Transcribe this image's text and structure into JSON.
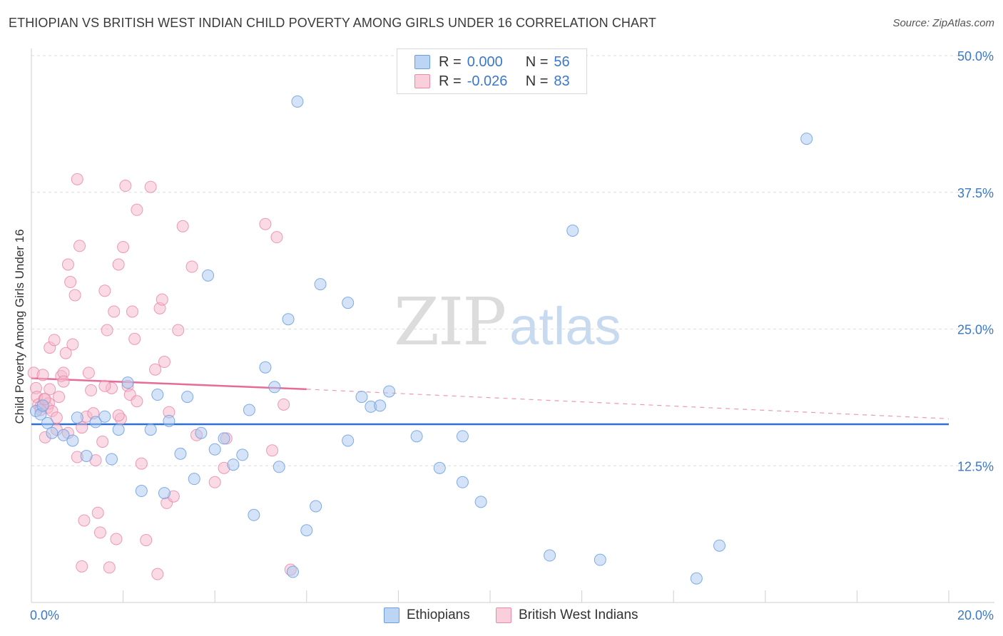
{
  "header": {
    "title": "ETHIOPIAN VS BRITISH WEST INDIAN CHILD POVERTY AMONG GIRLS UNDER 16 CORRELATION CHART",
    "source": "Source: ZipAtlas.com"
  },
  "watermark": {
    "zip": "ZIP",
    "atlas": "atlas"
  },
  "colors": {
    "blue_fill": "#a9c8f0",
    "blue_stroke": "#6c9fe0",
    "blue_line": "#2f6fd0",
    "pink_fill": "#f5b8cb",
    "pink_stroke": "#e98aa9",
    "pink_line": "#e66b98",
    "axis_text": "#3b78c9"
  },
  "legend": {
    "series": [
      {
        "r_label": "R =",
        "r_value": "0.000",
        "n_label": "N =",
        "n_value": "56"
      },
      {
        "r_label": "R =",
        "r_value": "-0.026",
        "n_label": "N =",
        "n_value": "83"
      }
    ],
    "bottom": [
      "Ethiopians",
      "British West Indians"
    ]
  },
  "chart_data": {
    "type": "scatter",
    "title": "ETHIOPIAN VS BRITISH WEST INDIAN CHILD POVERTY AMONG GIRLS UNDER 16 CORRELATION CHART",
    "xlabel": "",
    "ylabel": "Child Poverty Among Girls Under 16",
    "xlim": [
      0,
      20
    ],
    "ylim": [
      0,
      50
    ],
    "x_tick_labels": [
      "0.0%",
      "20.0%"
    ],
    "y_ticks": [
      12.5,
      25.0,
      37.5,
      50.0
    ],
    "y_tick_labels": [
      "12.5%",
      "25.0%",
      "37.5%",
      "50.0%"
    ],
    "grid": true,
    "series": [
      {
        "name": "Ethiopians",
        "r": 0.0,
        "n": 56,
        "trend": {
          "x": [
            0,
            20
          ],
          "y": [
            16.3,
            16.3
          ]
        },
        "points": [
          [
            0.1,
            17.5
          ],
          [
            0.2,
            17.2
          ],
          [
            0.35,
            16.4
          ],
          [
            0.45,
            15.5
          ],
          [
            0.7,
            15.3
          ],
          [
            0.9,
            14.8
          ],
          [
            1.0,
            16.9
          ],
          [
            1.2,
            13.4
          ],
          [
            1.4,
            16.5
          ],
          [
            1.6,
            17.0
          ],
          [
            1.75,
            13.1
          ],
          [
            1.9,
            15.8
          ],
          [
            2.1,
            20.1
          ],
          [
            2.4,
            10.2
          ],
          [
            2.6,
            15.8
          ],
          [
            2.75,
            19.0
          ],
          [
            2.9,
            10.0
          ],
          [
            3.0,
            16.6
          ],
          [
            3.25,
            13.6
          ],
          [
            3.4,
            18.8
          ],
          [
            3.55,
            11.3
          ],
          [
            3.7,
            15.5
          ],
          [
            3.85,
            29.9
          ],
          [
            4.0,
            14.0
          ],
          [
            4.2,
            15.0
          ],
          [
            4.4,
            12.6
          ],
          [
            4.6,
            13.5
          ],
          [
            4.75,
            17.6
          ],
          [
            4.85,
            8.0
          ],
          [
            5.1,
            21.5
          ],
          [
            5.3,
            19.7
          ],
          [
            5.4,
            12.4
          ],
          [
            5.6,
            25.9
          ],
          [
            5.7,
            2.8
          ],
          [
            5.8,
            45.8
          ],
          [
            6.0,
            6.6
          ],
          [
            6.2,
            8.8
          ],
          [
            6.3,
            29.1
          ],
          [
            6.9,
            14.8
          ],
          [
            6.9,
            27.4
          ],
          [
            7.2,
            18.8
          ],
          [
            7.4,
            17.9
          ],
          [
            7.6,
            18.0
          ],
          [
            7.8,
            19.3
          ],
          [
            8.4,
            15.2
          ],
          [
            8.9,
            12.3
          ],
          [
            9.4,
            15.2
          ],
          [
            9.4,
            11.0
          ],
          [
            9.8,
            9.2
          ],
          [
            11.3,
            4.3
          ],
          [
            11.8,
            34.0
          ],
          [
            12.4,
            3.9
          ],
          [
            14.5,
            2.2
          ],
          [
            15.0,
            5.2
          ],
          [
            16.9,
            42.4
          ],
          [
            0.25,
            18.0
          ]
        ]
      },
      {
        "name": "British West Indians",
        "r": -0.026,
        "n": 83,
        "trend": {
          "x": [
            0,
            6
          ],
          "y": [
            20.5,
            19.5
          ],
          "dashed_to": {
            "x": 20,
            "y": 16.8
          }
        },
        "points": [
          [
            0.05,
            21.0
          ],
          [
            0.1,
            19.6
          ],
          [
            0.12,
            18.8
          ],
          [
            0.15,
            18.1
          ],
          [
            0.2,
            17.9
          ],
          [
            0.25,
            20.8
          ],
          [
            0.28,
            18.6
          ],
          [
            0.3,
            15.1
          ],
          [
            0.35,
            17.8
          ],
          [
            0.38,
            18.2
          ],
          [
            0.4,
            23.3
          ],
          [
            0.45,
            17.5
          ],
          [
            0.5,
            24.0
          ],
          [
            0.55,
            15.8
          ],
          [
            0.6,
            18.8
          ],
          [
            0.65,
            20.7
          ],
          [
            0.7,
            21.0
          ],
          [
            0.75,
            22.8
          ],
          [
            0.8,
            30.9
          ],
          [
            0.85,
            29.3
          ],
          [
            0.9,
            23.6
          ],
          [
            0.95,
            28.1
          ],
          [
            1.0,
            38.7
          ],
          [
            1.05,
            32.6
          ],
          [
            1.1,
            3.3
          ],
          [
            1.15,
            7.5
          ],
          [
            1.2,
            17.0
          ],
          [
            1.25,
            21.0
          ],
          [
            1.3,
            19.4
          ],
          [
            1.35,
            17.3
          ],
          [
            1.4,
            13.0
          ],
          [
            1.45,
            8.2
          ],
          [
            1.5,
            6.4
          ],
          [
            1.55,
            14.7
          ],
          [
            1.6,
            28.5
          ],
          [
            1.65,
            24.9
          ],
          [
            1.7,
            3.2
          ],
          [
            1.75,
            19.6
          ],
          [
            1.8,
            26.6
          ],
          [
            1.85,
            5.8
          ],
          [
            1.9,
            30.9
          ],
          [
            1.95,
            16.8
          ],
          [
            2.0,
            32.5
          ],
          [
            2.05,
            38.1
          ],
          [
            2.1,
            19.8
          ],
          [
            2.15,
            19.0
          ],
          [
            2.2,
            26.6
          ],
          [
            2.25,
            24.1
          ],
          [
            2.3,
            35.9
          ],
          [
            2.4,
            12.7
          ],
          [
            2.5,
            5.7
          ],
          [
            2.6,
            38.0
          ],
          [
            2.7,
            21.3
          ],
          [
            2.75,
            2.6
          ],
          [
            2.8,
            26.9
          ],
          [
            2.85,
            27.7
          ],
          [
            2.9,
            22.0
          ],
          [
            2.95,
            9.1
          ],
          [
            3.0,
            17.4
          ],
          [
            3.1,
            9.7
          ],
          [
            3.2,
            24.9
          ],
          [
            3.3,
            34.4
          ],
          [
            3.5,
            30.7
          ],
          [
            3.6,
            15.3
          ],
          [
            4.0,
            11.0
          ],
          [
            4.2,
            12.3
          ],
          [
            4.25,
            15.0
          ],
          [
            5.1,
            34.6
          ],
          [
            5.25,
            13.9
          ],
          [
            5.35,
            33.4
          ],
          [
            5.5,
            18.1
          ],
          [
            5.65,
            3.0
          ],
          [
            1.0,
            13.3
          ],
          [
            0.2,
            17.6
          ],
          [
            0.3,
            18.6
          ],
          [
            0.4,
            19.5
          ],
          [
            0.55,
            16.9
          ],
          [
            0.7,
            20.2
          ],
          [
            1.6,
            19.8
          ],
          [
            1.9,
            17.1
          ],
          [
            2.3,
            18.4
          ],
          [
            0.8,
            15.5
          ],
          [
            1.1,
            16.0
          ]
        ]
      }
    ]
  }
}
